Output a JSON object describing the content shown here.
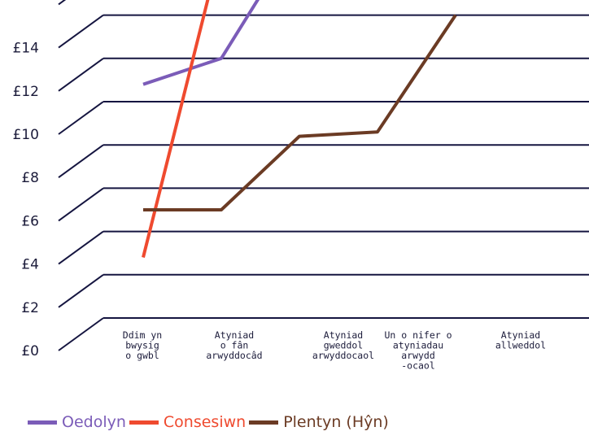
{
  "chart_data": {
    "type": "line",
    "categories": [
      [
        "Ddim yn",
        "bwysig",
        "o gwbl"
      ],
      [
        "Atyniad",
        "o fân",
        "arwyddocâd"
      ],
      [
        "Atyniad",
        "gweddol",
        "arwyddocaol"
      ],
      [
        "Un o nifer o",
        "atyniadau",
        "arwydd",
        "-ocaol"
      ],
      [
        "Atyniad",
        "allweddol"
      ]
    ],
    "y_ticks": [
      "£0",
      "£2",
      "£4",
      "£6",
      "£8",
      "£10",
      "£12",
      "£14"
    ],
    "ylim": [
      0,
      14
    ],
    "series": [
      {
        "name": "Oedolyn",
        "color": "#7b5cb8",
        "values": [
          5.4,
          6.0,
          8.9,
          9.0,
          13.5
        ]
      },
      {
        "name": "Consesiwn",
        "color": "#ef4a2f",
        "values": [
          1.4,
          8.6,
          7.4,
          7.4,
          11.4
        ]
      },
      {
        "name": "Plentyn (Hŷn)",
        "color": "#6b3b24",
        "values": [
          2.5,
          2.5,
          4.2,
          4.3,
          7.0
        ]
      }
    ],
    "grid": true,
    "legend_position": "bottom-left"
  }
}
